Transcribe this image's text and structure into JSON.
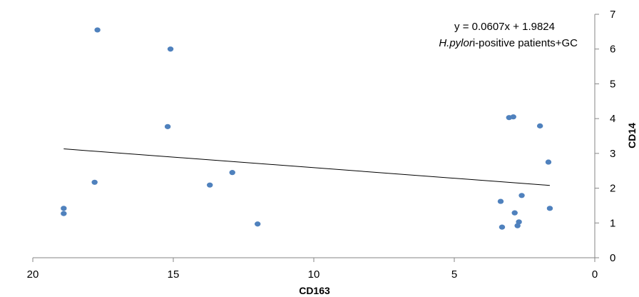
{
  "chart_data": {
    "type": "scatter",
    "x_reversed": true,
    "y_axis_position": "right",
    "xlabel": "CD163",
    "ylabel": "CD14",
    "xlim": [
      0,
      20
    ],
    "ylim": [
      0,
      7
    ],
    "x_ticks": [
      "20",
      "15",
      "10",
      "5",
      "0"
    ],
    "y_ticks": [
      "0",
      "1",
      "2",
      "3",
      "4",
      "5",
      "6",
      "7"
    ],
    "grid": false,
    "point_color": "#4f81bd",
    "annotation": {
      "equation": "y = 0.0607x + 1.9824",
      "label_italic": "H.pylor",
      "label_rest": "i-positive patients+GC"
    },
    "trendline": {
      "slope": 0.0607,
      "intercept": 1.9824,
      "x_start": 1.6,
      "x_end": 18.9
    },
    "points": [
      {
        "x": 17.7,
        "y": 6.55
      },
      {
        "x": 15.1,
        "y": 6.0
      },
      {
        "x": 15.2,
        "y": 3.77
      },
      {
        "x": 17.8,
        "y": 2.17
      },
      {
        "x": 18.9,
        "y": 1.42
      },
      {
        "x": 18.9,
        "y": 1.27
      },
      {
        "x": 13.7,
        "y": 2.09
      },
      {
        "x": 12.9,
        "y": 2.45
      },
      {
        "x": 12.0,
        "y": 0.97
      },
      {
        "x": 3.05,
        "y": 4.03
      },
      {
        "x": 2.9,
        "y": 4.05
      },
      {
        "x": 1.95,
        "y": 3.79
      },
      {
        "x": 1.65,
        "y": 2.75
      },
      {
        "x": 2.6,
        "y": 1.79
      },
      {
        "x": 3.35,
        "y": 1.62
      },
      {
        "x": 1.6,
        "y": 1.42
      },
      {
        "x": 2.85,
        "y": 1.29
      },
      {
        "x": 2.7,
        "y": 1.03
      },
      {
        "x": 2.75,
        "y": 0.92
      },
      {
        "x": 3.3,
        "y": 0.88
      }
    ]
  }
}
